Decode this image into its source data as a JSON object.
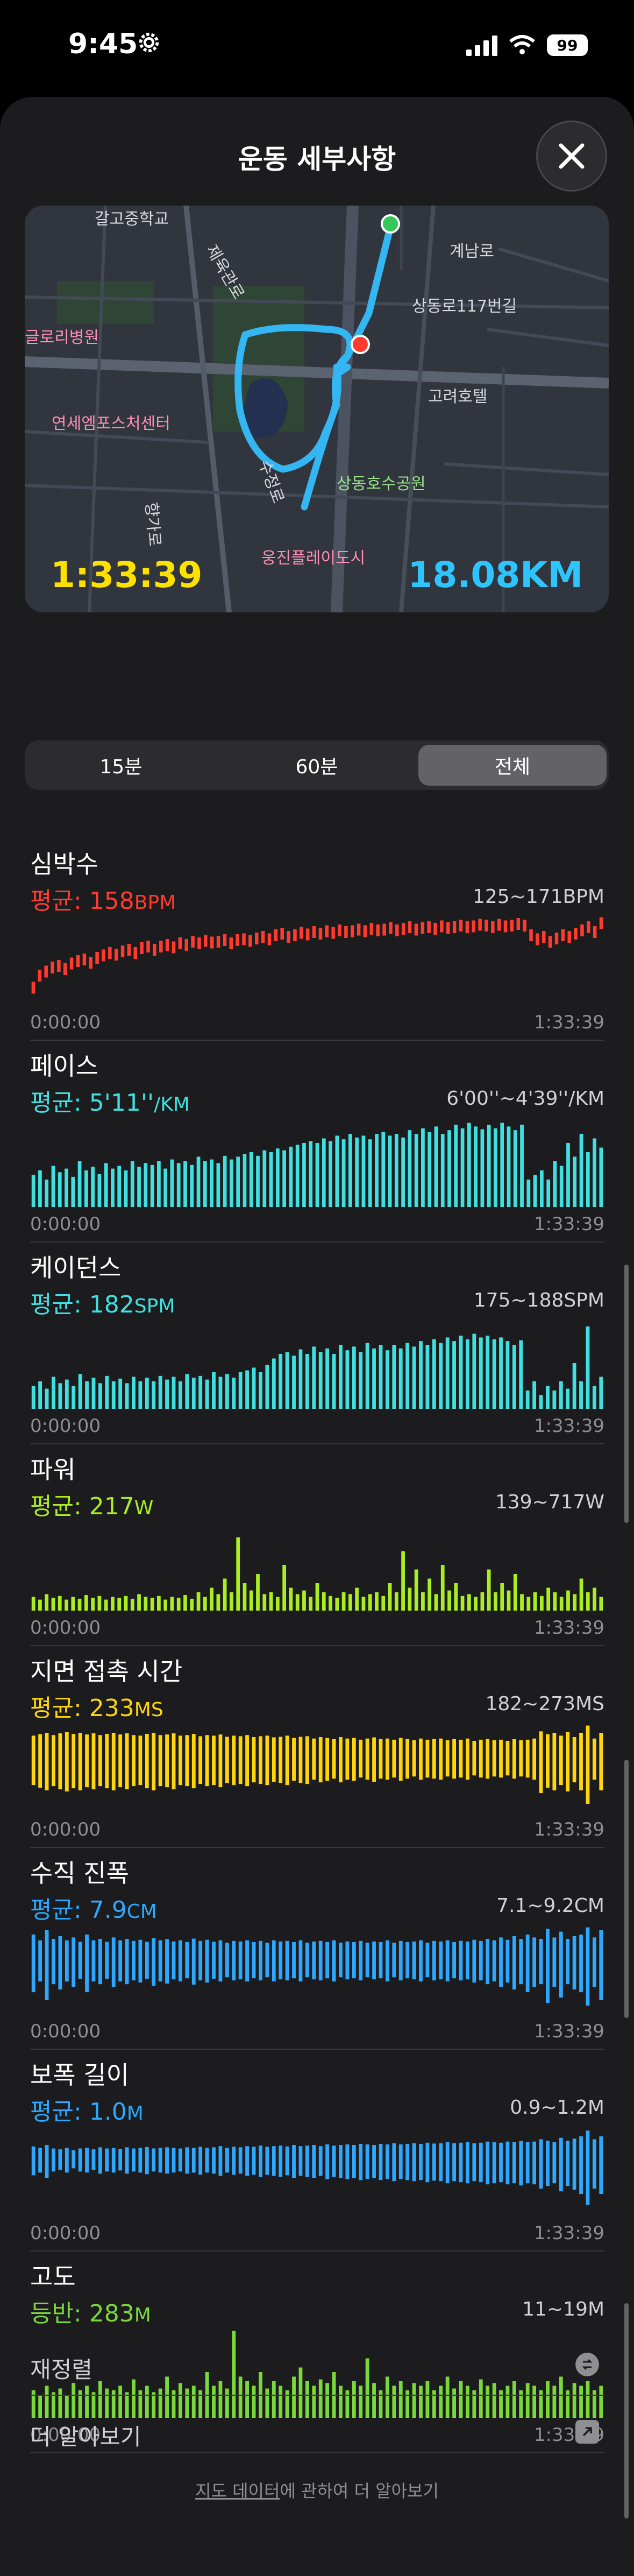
{
  "status": {
    "time": "9:45",
    "battery": "99"
  },
  "header": {
    "title": "운동 세부사항"
  },
  "map": {
    "duration": "1:33:39",
    "distance": "18.08KM",
    "labels": {
      "top": "갈고중학교",
      "gyerim": "제육관로",
      "gyenam": "계남로",
      "sangdong": "상동로117번길",
      "hospital": "글로리병원",
      "sports": "연세엠포스처센터",
      "hotel": "고려호텔",
      "park": "상동호수공원",
      "sujeong": "수정로",
      "hyang": "향가로",
      "play": "웅진플레이도시"
    }
  },
  "segments": [
    {
      "label": "15분",
      "active": false
    },
    {
      "label": "60분",
      "active": false
    },
    {
      "label": "전체",
      "active": true
    }
  ],
  "metrics": [
    {
      "title": "심박수",
      "avg_label": "평균:",
      "avg_value": "158",
      "avg_unit": "BPM",
      "range": "125~171BPM",
      "start": "0:00:00",
      "end": "1:33:39",
      "color": "#ff3b30",
      "style": "line",
      "values": [
        0.15,
        0.3,
        0.35,
        0.4,
        0.42,
        0.38,
        0.45,
        0.48,
        0.5,
        0.46,
        0.52,
        0.55,
        0.58,
        0.56,
        0.6,
        0.62,
        0.58,
        0.64,
        0.66,
        0.62,
        0.66,
        0.68,
        0.65,
        0.7,
        0.68,
        0.72,
        0.7,
        0.73,
        0.71,
        0.72,
        0.74,
        0.7,
        0.74,
        0.75,
        0.73,
        0.76,
        0.78,
        0.75,
        0.8,
        0.82,
        0.78,
        0.8,
        0.83,
        0.81,
        0.84,
        0.82,
        0.85,
        0.83,
        0.86,
        0.84,
        0.85,
        0.87,
        0.85,
        0.88,
        0.86,
        0.87,
        0.89,
        0.86,
        0.88,
        0.9,
        0.87,
        0.89,
        0.9,
        0.88,
        0.91,
        0.89,
        0.9,
        0.92,
        0.9,
        0.91,
        0.93,
        0.92,
        0.9,
        0.93,
        0.91,
        0.92,
        0.94,
        0.92,
        0.8,
        0.75,
        0.78,
        0.72,
        0.76,
        0.8,
        0.78,
        0.82,
        0.86,
        0.9,
        0.84,
        0.95
      ]
    },
    {
      "title": "페이스",
      "avg_label": "평균:",
      "avg_value": "5'11''",
      "avg_unit": "/KM",
      "range": "6'00''~4'39''/KM",
      "start": "0:00:00",
      "end": "1:33:39",
      "color": "#40e0e0",
      "style": "bar",
      "values": [
        0.35,
        0.4,
        0.3,
        0.45,
        0.38,
        0.42,
        0.33,
        0.5,
        0.4,
        0.44,
        0.36,
        0.48,
        0.42,
        0.45,
        0.4,
        0.5,
        0.44,
        0.48,
        0.46,
        0.5,
        0.42,
        0.52,
        0.48,
        0.5,
        0.46,
        0.55,
        0.5,
        0.52,
        0.48,
        0.56,
        0.52,
        0.55,
        0.58,
        0.6,
        0.56,
        0.62,
        0.6,
        0.64,
        0.62,
        0.66,
        0.68,
        0.7,
        0.72,
        0.7,
        0.75,
        0.72,
        0.78,
        0.74,
        0.8,
        0.76,
        0.78,
        0.74,
        0.8,
        0.82,
        0.78,
        0.8,
        0.76,
        0.84,
        0.8,
        0.86,
        0.82,
        0.88,
        0.8,
        0.84,
        0.9,
        0.86,
        0.92,
        0.88,
        0.85,
        0.9,
        0.86,
        0.92,
        0.88,
        0.84,
        0.9,
        0.3,
        0.35,
        0.4,
        0.3,
        0.5,
        0.45,
        0.7,
        0.55,
        0.8,
        0.6,
        0.75,
        0.65
      ]
    },
    {
      "title": "케이던스",
      "avg_label": "평균:",
      "avg_value": "182",
      "avg_unit": "SPM",
      "range": "175~188SPM",
      "start": "0:00:00",
      "end": "1:33:39",
      "color": "#40e0e0",
      "style": "bar",
      "values": [
        0.25,
        0.3,
        0.22,
        0.35,
        0.28,
        0.32,
        0.25,
        0.38,
        0.3,
        0.34,
        0.28,
        0.36,
        0.3,
        0.33,
        0.28,
        0.35,
        0.3,
        0.34,
        0.3,
        0.36,
        0.32,
        0.35,
        0.3,
        0.38,
        0.34,
        0.36,
        0.32,
        0.4,
        0.35,
        0.38,
        0.34,
        0.4,
        0.42,
        0.45,
        0.4,
        0.48,
        0.55,
        0.6,
        0.62,
        0.58,
        0.65,
        0.6,
        0.68,
        0.62,
        0.66,
        0.6,
        0.7,
        0.64,
        0.68,
        0.62,
        0.72,
        0.66,
        0.7,
        0.64,
        0.7,
        0.66,
        0.72,
        0.68,
        0.74,
        0.7,
        0.76,
        0.72,
        0.78,
        0.74,
        0.8,
        0.76,
        0.82,
        0.78,
        0.8,
        0.76,
        0.78,
        0.74,
        0.7,
        0.75,
        0.2,
        0.3,
        0.15,
        0.25,
        0.2,
        0.3,
        0.22,
        0.5,
        0.3,
        0.9,
        0.25,
        0.35
      ]
    },
    {
      "title": "파워",
      "avg_label": "평균:",
      "avg_value": "217",
      "avg_unit": "W",
      "range": "139~717W",
      "start": "0:00:00",
      "end": "1:33:39",
      "color": "#aaee22",
      "style": "bar",
      "values": [
        0.15,
        0.12,
        0.18,
        0.14,
        0.16,
        0.12,
        0.15,
        0.13,
        0.17,
        0.14,
        0.16,
        0.12,
        0.15,
        0.14,
        0.16,
        0.13,
        0.18,
        0.15,
        0.14,
        0.16,
        0.12,
        0.15,
        0.14,
        0.17,
        0.13,
        0.2,
        0.15,
        0.25,
        0.18,
        0.35,
        0.2,
        0.8,
        0.3,
        0.22,
        0.4,
        0.18,
        0.2,
        0.15,
        0.5,
        0.25,
        0.18,
        0.22,
        0.15,
        0.3,
        0.2,
        0.16,
        0.14,
        0.2,
        0.18,
        0.25,
        0.15,
        0.18,
        0.2,
        0.16,
        0.3,
        0.2,
        0.65,
        0.25,
        0.45,
        0.2,
        0.35,
        0.18,
        0.5,
        0.22,
        0.3,
        0.16,
        0.18,
        0.15,
        0.2,
        0.45,
        0.2,
        0.3,
        0.22,
        0.4,
        0.18,
        0.15,
        0.2,
        0.16,
        0.25,
        0.2,
        0.15,
        0.22,
        0.18,
        0.35,
        0.2,
        0.25,
        0.15
      ]
    },
    {
      "title": "지면 접촉 시간",
      "avg_label": "평균:",
      "avg_value": "233",
      "avg_unit": "MS",
      "range": "182~273MS",
      "start": "0:00:00",
      "end": "1:33:39",
      "color": "#ffd60a",
      "style": "hbar",
      "values": [
        0.6,
        0.65,
        0.7,
        0.62,
        0.68,
        0.72,
        0.66,
        0.7,
        0.64,
        0.68,
        0.62,
        0.66,
        0.7,
        0.64,
        0.68,
        0.62,
        0.6,
        0.66,
        0.7,
        0.62,
        0.64,
        0.68,
        0.6,
        0.62,
        0.66,
        0.58,
        0.62,
        0.6,
        0.64,
        0.56,
        0.6,
        0.58,
        0.62,
        0.55,
        0.58,
        0.6,
        0.54,
        0.56,
        0.6,
        0.52,
        0.56,
        0.58,
        0.5,
        0.55,
        0.52,
        0.48,
        0.55,
        0.5,
        0.52,
        0.46,
        0.5,
        0.54,
        0.48,
        0.5,
        0.46,
        0.52,
        0.48,
        0.44,
        0.5,
        0.46,
        0.48,
        0.5,
        0.44,
        0.48,
        0.46,
        0.5,
        0.42,
        0.46,
        0.48,
        0.44,
        0.46,
        0.42,
        0.48,
        0.44,
        0.46,
        0.5,
        0.75,
        0.65,
        0.7,
        0.6,
        0.72,
        0.55,
        0.7,
        0.95,
        0.5,
        0.7
      ]
    },
    {
      "title": "수직 진폭",
      "avg_label": "평균:",
      "avg_value": "7.9",
      "avg_unit": "CM",
      "range": "7.1~9.2CM",
      "start": "0:00:00",
      "end": "1:33:39",
      "color": "#2ea8ff",
      "style": "hbar",
      "values": [
        0.7,
        0.5,
        0.85,
        0.55,
        0.65,
        0.5,
        0.6,
        0.45,
        0.7,
        0.5,
        0.55,
        0.45,
        0.6,
        0.5,
        0.55,
        0.48,
        0.52,
        0.45,
        0.58,
        0.5,
        0.54,
        0.46,
        0.5,
        0.44,
        0.56,
        0.48,
        0.52,
        0.45,
        0.5,
        0.42,
        0.48,
        0.46,
        0.5,
        0.44,
        0.48,
        0.42,
        0.5,
        0.46,
        0.48,
        0.44,
        0.5,
        0.42,
        0.46,
        0.48,
        0.44,
        0.5,
        0.42,
        0.46,
        0.44,
        0.48,
        0.42,
        0.46,
        0.44,
        0.5,
        0.42,
        0.48,
        0.44,
        0.46,
        0.5,
        0.42,
        0.48,
        0.46,
        0.5,
        0.44,
        0.48,
        0.46,
        0.52,
        0.48,
        0.55,
        0.5,
        0.6,
        0.52,
        0.65,
        0.55,
        0.7,
        0.6,
        0.55,
        0.9,
        0.6,
        0.8,
        0.55,
        0.65,
        0.7,
        0.95,
        0.6,
        0.85
      ]
    },
    {
      "title": "보폭 길이",
      "avg_label": "평균:",
      "avg_value": "1.0",
      "avg_unit": "M",
      "range": "0.9~1.2M",
      "start": "0:00:00",
      "end": "1:33:39",
      "color": "#2ea8ff",
      "style": "hbar",
      "values": [
        0.35,
        0.3,
        0.4,
        0.28,
        0.25,
        0.3,
        0.22,
        0.28,
        0.3,
        0.25,
        0.32,
        0.28,
        0.3,
        0.26,
        0.32,
        0.28,
        0.3,
        0.33,
        0.28,
        0.3,
        0.32,
        0.3,
        0.28,
        0.32,
        0.3,
        0.34,
        0.3,
        0.32,
        0.36,
        0.3,
        0.34,
        0.32,
        0.36,
        0.34,
        0.38,
        0.34,
        0.36,
        0.38,
        0.35,
        0.4,
        0.36,
        0.38,
        0.4,
        0.36,
        0.42,
        0.38,
        0.4,
        0.42,
        0.4,
        0.44,
        0.42,
        0.4,
        0.44,
        0.42,
        0.46,
        0.42,
        0.44,
        0.46,
        0.44,
        0.48,
        0.45,
        0.46,
        0.5,
        0.46,
        0.48,
        0.5,
        0.46,
        0.48,
        0.52,
        0.5,
        0.48,
        0.52,
        0.5,
        0.54,
        0.5,
        0.52,
        0.6,
        0.55,
        0.5,
        0.65,
        0.55,
        0.62,
        0.7,
        0.9,
        0.6,
        0.7
      ]
    },
    {
      "title": "고도",
      "avg_label": "등반:",
      "avg_value": "283",
      "avg_unit": "M",
      "range": "11~19M",
      "start": "0:00:00",
      "end": "1:33:39",
      "color": "#7ad83a",
      "style": "bar",
      "values": [
        0.3,
        0.25,
        0.35,
        0.28,
        0.32,
        0.25,
        0.38,
        0.3,
        0.35,
        0.28,
        0.4,
        0.32,
        0.3,
        0.35,
        0.28,
        0.42,
        0.3,
        0.35,
        0.28,
        0.32,
        0.45,
        0.3,
        0.38,
        0.32,
        0.35,
        0.3,
        0.5,
        0.35,
        0.4,
        0.32,
        0.95,
        0.45,
        0.4,
        0.35,
        0.5,
        0.32,
        0.4,
        0.35,
        0.3,
        0.45,
        0.55,
        0.4,
        0.35,
        0.42,
        0.38,
        0.5,
        0.35,
        0.3,
        0.4,
        0.35,
        0.65,
        0.38,
        0.3,
        0.45,
        0.35,
        0.4,
        0.3,
        0.38,
        0.35,
        0.4,
        0.3,
        0.35,
        0.45,
        0.32,
        0.4,
        0.35,
        0.3,
        0.42,
        0.35,
        0.38,
        0.3,
        0.35,
        0.4,
        0.3,
        0.38,
        0.35,
        0.3,
        0.4,
        0.35,
        0.45,
        0.3,
        0.38,
        0.35,
        0.4,
        0.3,
        0.35
      ]
    }
  ],
  "actions": [
    {
      "label": "재정렬",
      "icon": "reorder-icon"
    },
    {
      "label": "더 알아보기",
      "icon": "external-link-icon"
    }
  ],
  "footer": {
    "link": "지도 데이터",
    "text": "에 관하여 더 알아보기"
  }
}
